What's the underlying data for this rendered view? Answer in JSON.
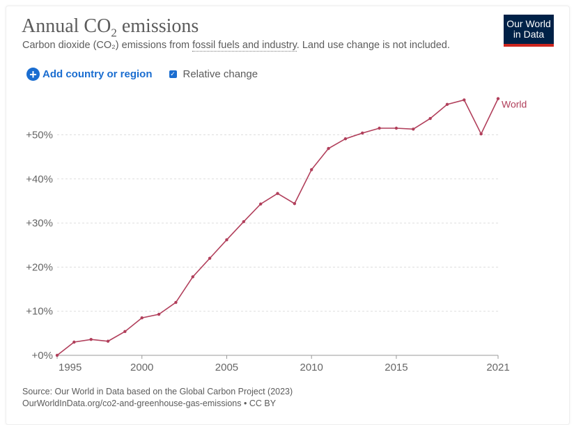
{
  "header": {
    "title_main": "Annual CO",
    "title_sub": "2",
    "title_end": " emissions",
    "subtitle_pre": "Carbon dioxide (CO₂) emissions from ",
    "subtitle_link": "fossil fuels and industry",
    "subtitle_post": ". Land use change is not included.",
    "logo_line1": "Our World",
    "logo_line2": "in Data"
  },
  "controls": {
    "add_label": "Add country or region",
    "relative_label": "Relative change",
    "relative_checked": true
  },
  "footer": {
    "source": "Source: Our World in Data based on the Global Carbon Project (2023)",
    "url": "OurWorldInData.org/co2-and-greenhouse-gas-emissions • CC BY"
  },
  "colors": {
    "series": "#b13f5b",
    "logo_bg": "#002147",
    "logo_bar": "#ce261e",
    "accent": "#1a6dd0"
  },
  "chart_data": {
    "type": "line",
    "title": "Annual CO₂ emissions",
    "xlabel": "",
    "ylabel": "",
    "xlim": [
      1995,
      2021
    ],
    "ylim": [
      0,
      60
    ],
    "grid": true,
    "x_ticks": [
      1995,
      2000,
      2005,
      2010,
      2015,
      2021
    ],
    "x_tick_labels": [
      "1995",
      "2000",
      "2005",
      "2010",
      "2015",
      "2021"
    ],
    "y_ticks": [
      0,
      10,
      20,
      30,
      40,
      50
    ],
    "y_tick_labels": [
      "+0%",
      "+10%",
      "+20%",
      "+30%",
      "+40%",
      "+50%"
    ],
    "series": [
      {
        "name": "World",
        "x": [
          1995,
          1996,
          1997,
          1998,
          1999,
          2000,
          2001,
          2002,
          2003,
          2004,
          2005,
          2006,
          2007,
          2008,
          2009,
          2010,
          2011,
          2012,
          2013,
          2014,
          2015,
          2016,
          2017,
          2018,
          2019,
          2020,
          2021
        ],
        "values": [
          0,
          3.0,
          3.6,
          3.2,
          5.4,
          8.5,
          9.3,
          12.0,
          17.8,
          22.0,
          26.2,
          30.3,
          34.3,
          36.7,
          34.4,
          42.1,
          46.9,
          49.1,
          50.4,
          51.5,
          51.5,
          51.3,
          53.7,
          56.9,
          57.9,
          50.2,
          58.2
        ]
      }
    ]
  }
}
